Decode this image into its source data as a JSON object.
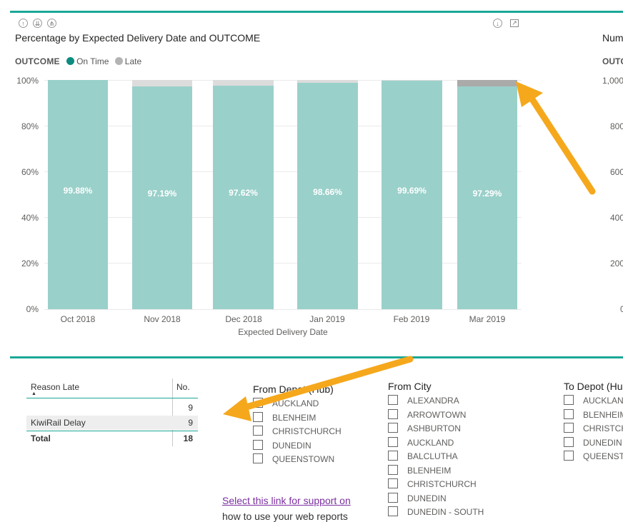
{
  "chart": {
    "title": "Percentage by Expected Delivery Date and OUTCOME",
    "legend_title": "OUTCOME",
    "legend": [
      {
        "name": "On Time",
        "color": "#0d8b80"
      },
      {
        "name": "Late",
        "color": "#b3b3b3"
      }
    ],
    "y_ticks": [
      "100%",
      "80%",
      "60%",
      "40%",
      "20%",
      "0%"
    ],
    "x_axis_label": "Expected Delivery Date",
    "header_icons": [
      "drill-up-icon",
      "drill-down-icon",
      "expand-all-icon"
    ],
    "right_icons": [
      "download-icon",
      "focus-mode-icon"
    ]
  },
  "chart_data": {
    "type": "bar",
    "stacked": true,
    "categories": [
      "Oct 2018",
      "Nov 2018",
      "Dec 2018",
      "Jan 2019",
      "Feb 2019",
      "Mar 2019"
    ],
    "series": [
      {
        "name": "On Time",
        "values": [
          99.88,
          97.19,
          97.62,
          98.66,
          99.69,
          97.29
        ],
        "labels": [
          "99.88%",
          "97.19%",
          "97.62%",
          "98.66%",
          "99.69%",
          "97.29%"
        ]
      },
      {
        "name": "Late",
        "values": [
          0.12,
          2.81,
          2.38,
          1.34,
          0.31,
          2.71
        ]
      }
    ],
    "xlabel": "Expected Delivery Date",
    "ylim": [
      0,
      100
    ],
    "highlight_category": "Mar 2019"
  },
  "right_chart": {
    "title_partial": "Num",
    "legend_partial": "OUTC",
    "y_ticks": [
      "1,000",
      "800",
      "600",
      "400",
      "200",
      "0"
    ]
  },
  "table": {
    "columns": [
      "Reason Late",
      "No."
    ],
    "rows": [
      {
        "reason": "",
        "no": "9"
      },
      {
        "reason": "KiwiRail Delay",
        "no": "9"
      }
    ],
    "total_label": "Total",
    "total_value": "18"
  },
  "from_depot": {
    "title": "From Depot (Hub)",
    "items": [
      "AUCKLAND",
      "BLENHEIM",
      "CHRISTCHURCH",
      "DUNEDIN",
      "QUEENSTOWN"
    ]
  },
  "from_city": {
    "title": "From City",
    "items": [
      "ALEXANDRA",
      "ARROWTOWN",
      "ASHBURTON",
      "AUCKLAND",
      "BALCLUTHA",
      "BLENHEIM",
      "CHRISTCHURCH",
      "DUNEDIN",
      "DUNEDIN - SOUTH"
    ]
  },
  "to_depot": {
    "title": "To Depot (Hu",
    "items": [
      "AUCKLAN",
      "BLENHEIM",
      "CHRISTCH",
      "DUNEDIN",
      "QUEENSTO"
    ]
  },
  "support": {
    "link_text": "Select this link for support on",
    "line2": "how to use your web reports"
  },
  "annotations": {
    "arrow_color": "#f5a81c"
  }
}
